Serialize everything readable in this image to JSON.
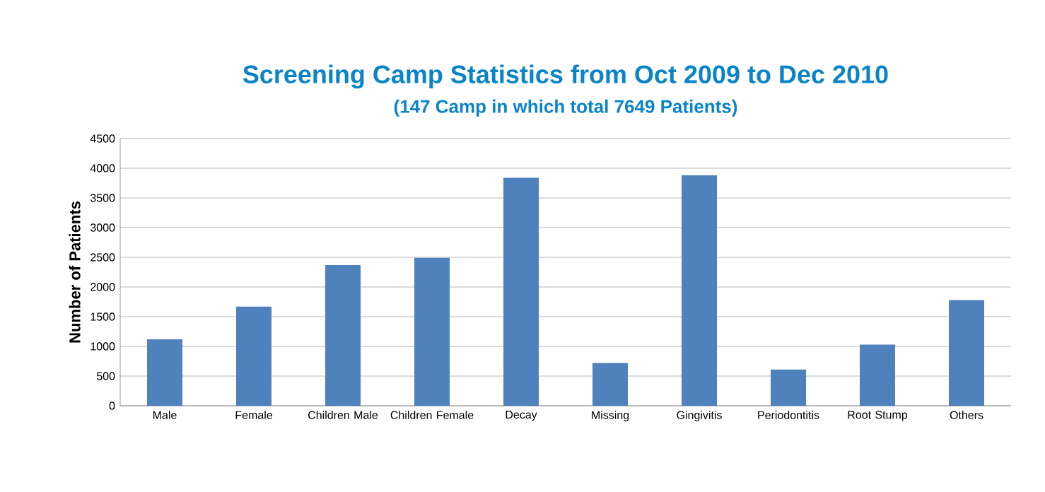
{
  "chart_data": {
    "type": "bar",
    "title": "Screening Camp Statistics from Oct 2009  to  Dec 2010",
    "subtitle": "(147 Camp in which total 7649 Patients)",
    "ylabel": "Number of Patients",
    "categories": [
      "Male",
      "Female",
      "Children Male",
      "Children Female",
      "Decay",
      "Missing",
      "Gingivitis",
      "Periodontitis",
      "Root Stump",
      "Others"
    ],
    "values": [
      1120,
      1670,
      2370,
      2490,
      3840,
      720,
      3880,
      610,
      1030,
      1780
    ],
    "color": "#4f81bd",
    "ylim": [
      0,
      4500
    ],
    "yticks": [
      0,
      500,
      1000,
      1500,
      2000,
      2500,
      3000,
      3500,
      4000,
      4500
    ],
    "grid": "y"
  }
}
